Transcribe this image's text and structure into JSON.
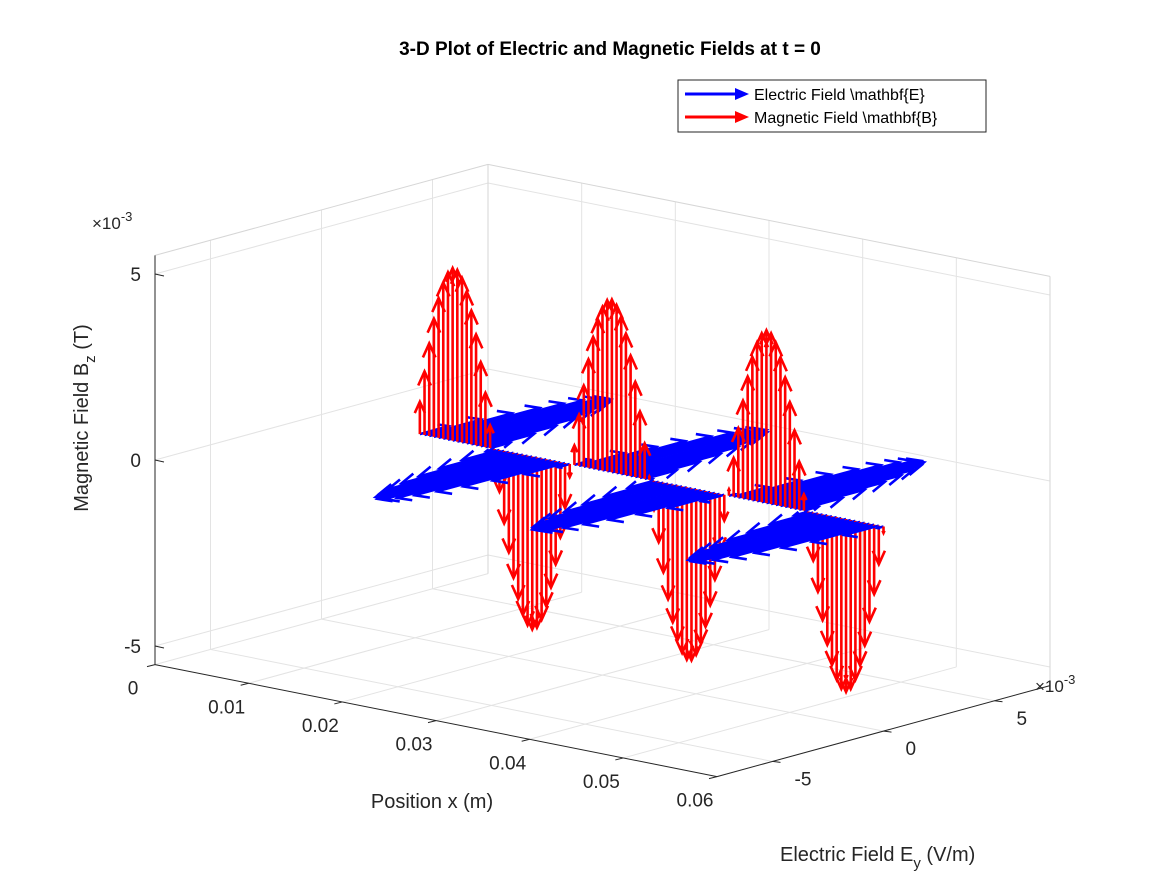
{
  "chart_data": {
    "type": "quiver3",
    "title": "3-D Plot of Electric and Magnetic Fields at t = 0",
    "xlabel": "Position x (m)",
    "ylabel_main": "Electric Field E",
    "ylabel_sub": "y",
    "ylabel_unit": " (V/m)",
    "zlabel_main": "Magnetic Field B",
    "zlabel_sub": "z",
    "zlabel_unit": " (T)",
    "xlim": [
      0,
      0.06
    ],
    "ylim": [
      -0.0075,
      0.0075
    ],
    "zlim": [
      -0.0055,
      0.0055
    ],
    "x_ticks": [
      "0",
      "0.01",
      "0.02",
      "0.03",
      "0.04",
      "0.05",
      "0.06"
    ],
    "y_ticks": [
      "-5",
      "0",
      "5"
    ],
    "z_ticks": [
      "-5",
      "0",
      "5"
    ],
    "y_exponent_base": "×10",
    "y_exponent_power": "-3",
    "z_exponent_base": "×10",
    "z_exponent_power": "-3",
    "grid": true,
    "legend_position": "top-right",
    "wave": {
      "x_start": 0.01,
      "x_end": 0.06,
      "x_step": 0.0005,
      "wavelength": 0.0167,
      "E_amplitude": 0.0075,
      "B_amplitude": 0.005
    },
    "series": [
      {
        "name": "Electric Field \\mathbf{E}",
        "color": "#0000ff",
        "component": "Ey"
      },
      {
        "name": "Magnetic Field \\mathbf{B}",
        "color": "#ff0000",
        "component": "Bz"
      }
    ]
  }
}
